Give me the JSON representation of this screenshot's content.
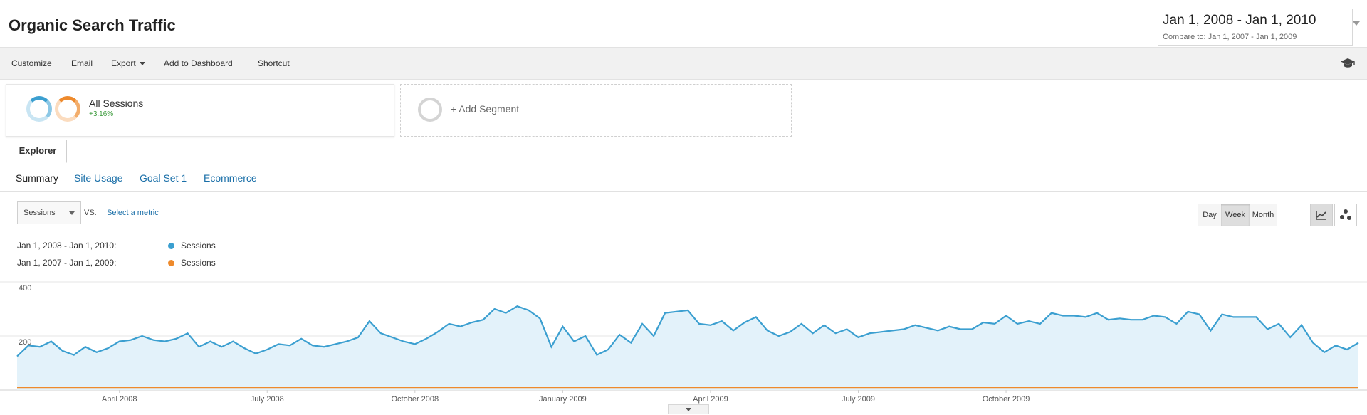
{
  "page": {
    "title": "Organic Search Traffic"
  },
  "date_range": {
    "main": "Jan 1, 2008 - Jan 1, 2010",
    "compare": "Compare to: Jan 1, 2007 - Jan 1, 2009"
  },
  "toolbar": {
    "items": [
      "Customize",
      "Email",
      "Export",
      "Add to Dashboard",
      "Shortcut"
    ]
  },
  "segments": {
    "active": {
      "name": "All Sessions",
      "pct": "+3.16%"
    },
    "add_label": "+ Add Segment"
  },
  "tabs": {
    "explorer": "Explorer",
    "subtabs": [
      "Summary",
      "Site Usage",
      "Goal Set 1",
      "Ecommerce"
    ]
  },
  "controls": {
    "metric": "Sessions",
    "vs": "VS.",
    "select_metric": "Select a metric",
    "granularity": [
      "Day",
      "Week",
      "Month"
    ],
    "active_granularity": "Week"
  },
  "colors": {
    "primary": "#3b9fd0",
    "compare": "#ee8a2c",
    "fill": "#e3f2fa",
    "link": "#1a6fa8"
  },
  "legend": [
    {
      "range": "Jan 1, 2008 - Jan 1, 2010:",
      "metric": "Sessions",
      "color": "#3b9fd0"
    },
    {
      "range": "Jan 1, 2007 - Jan 1, 2009:",
      "metric": "Sessions",
      "color": "#ee8a2c"
    }
  ],
  "chart_data": {
    "type": "line",
    "title": "",
    "xlabel": "",
    "ylabel": "",
    "ylim": [
      0,
      400
    ],
    "yticks": [
      "400",
      "200"
    ],
    "x_tick_labels": [
      "April 2008",
      "July 2008",
      "October 2008",
      "January 2009",
      "April 2009",
      "July 2009",
      "October 2009"
    ],
    "x_tick_positions": [
      9,
      22,
      35,
      48,
      61,
      74,
      87
    ],
    "grid": true,
    "legend_position": "top-left",
    "series": [
      {
        "name": "Sessions",
        "values": [
          125,
          165,
          160,
          180,
          145,
          130,
          160,
          140,
          155,
          180,
          185,
          200,
          185,
          180,
          190,
          210,
          160,
          180,
          160,
          180,
          155,
          135,
          150,
          170,
          165,
          190,
          165,
          160,
          170,
          180,
          195,
          255,
          210,
          195,
          180,
          170,
          190,
          215,
          245,
          235,
          250,
          260,
          300,
          285,
          310,
          295,
          265,
          160,
          235,
          180,
          200,
          130,
          150,
          205,
          175,
          245,
          200,
          285,
          290,
          295,
          245,
          240,
          255,
          220,
          250,
          270,
          220,
          200,
          215,
          245,
          210,
          240,
          210,
          225,
          195,
          210,
          215,
          220,
          225,
          240,
          230,
          220,
          235,
          225,
          225,
          250,
          245,
          275,
          245,
          255,
          245,
          285,
          275,
          275,
          270,
          285,
          260,
          265,
          260,
          260,
          275,
          270,
          245,
          290,
          280,
          220,
          280,
          270,
          270,
          270,
          225,
          245,
          195,
          240,
          175,
          140,
          165,
          150,
          175
        ]
      },
      {
        "name": "Sessions",
        "values": [
          10,
          10,
          10,
          10,
          10,
          10,
          10,
          10,
          10,
          10,
          10,
          10,
          10,
          10,
          10,
          10,
          10,
          10,
          10,
          10,
          10,
          10,
          10,
          10,
          10,
          10,
          10,
          10,
          10,
          10,
          10,
          10,
          10,
          10,
          10,
          10,
          10,
          10,
          10,
          10,
          10,
          10,
          10,
          10,
          10,
          10,
          10,
          10,
          10,
          10,
          10,
          10,
          10,
          10,
          10,
          10,
          10,
          10,
          10,
          10,
          10,
          10,
          10,
          10,
          10,
          10,
          10,
          10,
          10,
          10,
          10,
          10,
          10,
          10,
          10,
          10,
          10,
          10,
          10,
          10,
          10,
          10,
          10,
          10,
          10,
          10,
          10,
          10,
          10,
          10,
          10,
          10,
          10,
          10,
          10,
          10,
          10,
          10,
          10,
          10,
          10,
          10,
          10,
          10,
          10,
          10,
          10,
          10,
          10,
          10,
          10,
          10,
          10,
          10,
          10,
          10,
          10,
          10,
          10
        ]
      }
    ]
  }
}
